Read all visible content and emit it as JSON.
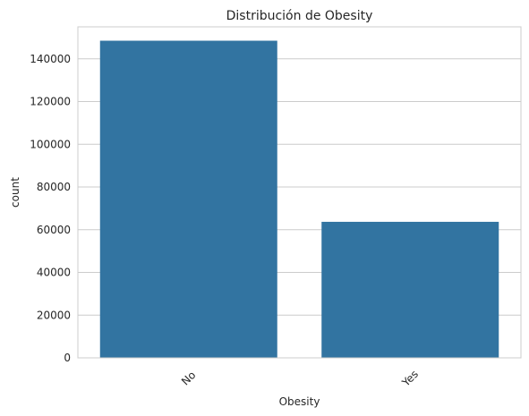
{
  "chart_data": {
    "type": "bar",
    "title": "Distribución de Obesity",
    "xlabel": "Obesity",
    "ylabel": "count",
    "categories": [
      "No",
      "Yes"
    ],
    "values": [
      148500,
      63700
    ],
    "ylim": [
      0,
      155000
    ],
    "yticks": [
      0,
      20000,
      40000,
      60000,
      80000,
      100000,
      120000,
      140000
    ],
    "ytick_labels": [
      "0",
      "20000",
      "40000",
      "60000",
      "80000",
      "100000",
      "120000",
      "140000"
    ],
    "grid": "horizontal",
    "bar_color": "#3274a1",
    "grid_color": "#cccccc",
    "spine_color": "#cccccc"
  }
}
